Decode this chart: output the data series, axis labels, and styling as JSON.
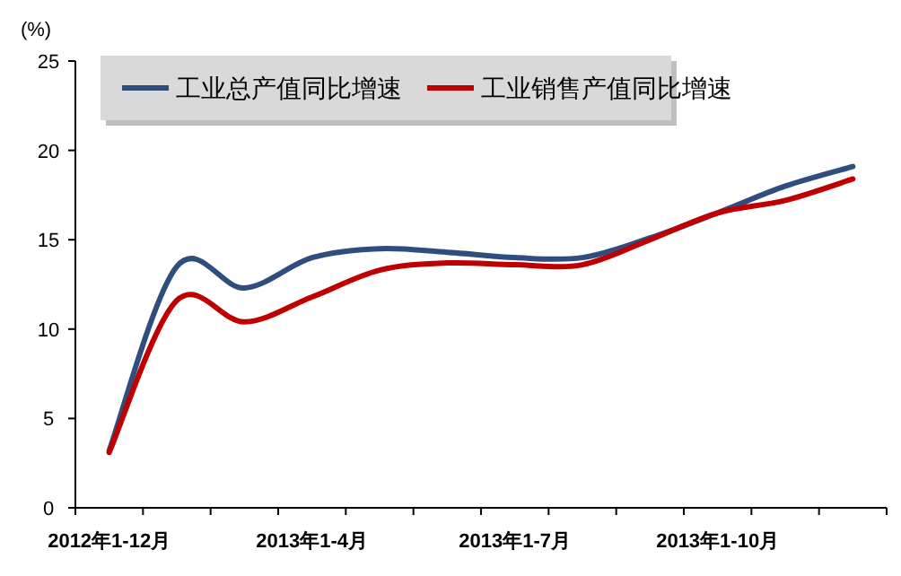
{
  "chart_data": {
    "type": "line",
    "ylabel": "(%)",
    "categories": [
      "2012年1-12月",
      null,
      null,
      "2013年1-4月",
      null,
      null,
      "2013年1-7月",
      null,
      null,
      "2013年1-10月",
      null,
      null
    ],
    "series": [
      {
        "name": "工业总产值同比增速",
        "color": "#2f4e7e",
        "values": [
          3.2,
          13.5,
          12.3,
          14.0,
          14.5,
          14.3,
          14.0,
          14.0,
          15.1,
          16.5,
          18.0,
          19.1
        ]
      },
      {
        "name": "工业销售产值同比增速",
        "color": "#c00000",
        "values": [
          3.1,
          11.6,
          10.4,
          11.8,
          13.3,
          13.7,
          13.6,
          13.6,
          15.0,
          16.5,
          17.2,
          18.4
        ]
      }
    ],
    "ylim": [
      0,
      25
    ],
    "yticks": [
      0,
      5,
      10,
      15,
      20,
      25
    ],
    "grid": false,
    "legend": "top left",
    "marker": "none",
    "line_style": "solid"
  }
}
